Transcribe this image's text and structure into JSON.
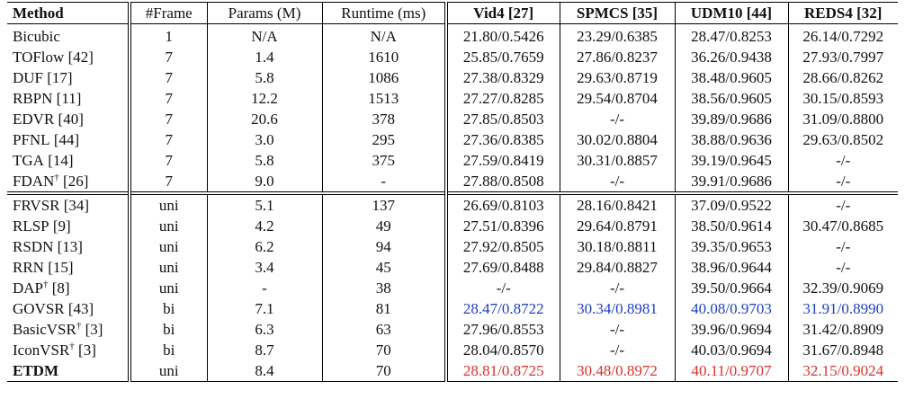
{
  "colors": {
    "best": "#d8322a",
    "second": "#1f3fbf"
  },
  "headers": [
    "Method",
    "#Frame",
    "Params (M)",
    "Runtime (ms)",
    "Vid4 [27]",
    "SPMCS [35]",
    "UDM10 [44]",
    "REDS4 [32]"
  ],
  "group1": [
    {
      "method": "Bicubic",
      "sup": "",
      "ref": "",
      "frame": "1",
      "params": "N/A",
      "runtime": "N/A",
      "vid4": "21.80/0.5426",
      "spmcs": "23.29/0.6385",
      "udm10": "28.47/0.8253",
      "reds4": "26.14/0.7292"
    },
    {
      "method": "TOFlow",
      "sup": "",
      "ref": " [42]",
      "frame": "7",
      "params": "1.4",
      "runtime": "1610",
      "vid4": "25.85/0.7659",
      "spmcs": "27.86/0.8237",
      "udm10": "36.26/0.9438",
      "reds4": "27.93/0.7997"
    },
    {
      "method": "DUF",
      "sup": "",
      "ref": " [17]",
      "frame": "7",
      "params": "5.8",
      "runtime": "1086",
      "vid4": "27.38/0.8329",
      "spmcs": "29.63/0.8719",
      "udm10": "38.48/0.9605",
      "reds4": "28.66/0.8262"
    },
    {
      "method": "RBPN",
      "sup": "",
      "ref": " [11]",
      "frame": "7",
      "params": "12.2",
      "runtime": "1513",
      "vid4": "27.27/0.8285",
      "spmcs": "29.54/0.8704",
      "udm10": "38.56/0.9605",
      "reds4": "30.15/0.8593"
    },
    {
      "method": "EDVR",
      "sup": "",
      "ref": " [40]",
      "frame": "7",
      "params": "20.6",
      "runtime": "378",
      "vid4": "27.85/0.8503",
      "spmcs": "-/-",
      "udm10": "39.89/0.9686",
      "reds4": "31.09/0.8800"
    },
    {
      "method": "PFNL",
      "sup": "",
      "ref": " [44]",
      "frame": "7",
      "params": "3.0",
      "runtime": "295",
      "vid4": "27.36/0.8385",
      "spmcs": "30.02/0.8804",
      "udm10": "38.88/0.9636",
      "reds4": "29.63/0.8502"
    },
    {
      "method": "TGA",
      "sup": "",
      "ref": " [14]",
      "frame": "7",
      "params": "5.8",
      "runtime": "375",
      "vid4": "27.59/0.8419",
      "spmcs": "30.31/0.8857",
      "udm10": "39.19/0.9645",
      "reds4": "-/-"
    },
    {
      "method": "FDAN",
      "sup": "†",
      "ref": " [26]",
      "frame": "7",
      "params": "9.0",
      "runtime": "-",
      "vid4": "27.88/0.8508",
      "spmcs": "-/-",
      "udm10": "39.91/0.9686",
      "reds4": "-/-"
    }
  ],
  "group2": [
    {
      "method": "FRVSR",
      "sup": "",
      "ref": " [34]",
      "frame": "uni",
      "params": "5.1",
      "runtime": "137",
      "vid4": "26.69/0.8103",
      "spmcs": "28.16/0.8421",
      "udm10": "37.09/0.9522",
      "reds4": "-/-"
    },
    {
      "method": "RLSP",
      "sup": "",
      "ref": " [9]",
      "frame": "uni",
      "params": "4.2",
      "runtime": "49",
      "vid4": "27.51/0.8396",
      "spmcs": "29.64/0.8791",
      "udm10": "38.50/0.9614",
      "reds4": "30.47/0.8685"
    },
    {
      "method": "RSDN",
      "sup": "",
      "ref": " [13]",
      "frame": "uni",
      "params": "6.2",
      "runtime": "94",
      "vid4": "27.92/0.8505",
      "spmcs": "30.18/0.8811",
      "udm10": "39.35/0.9653",
      "reds4": "-/-"
    },
    {
      "method": "RRN",
      "sup": "",
      "ref": " [15]",
      "frame": "uni",
      "params": "3.4",
      "runtime": "45",
      "vid4": "27.69/0.8488",
      "spmcs": "29.84/0.8827",
      "udm10": "38.96/0.9644",
      "reds4": "-/-"
    },
    {
      "method": "DAP",
      "sup": "†",
      "ref": " [8]",
      "frame": "uni",
      "params": "-",
      "runtime": "38",
      "vid4": "-/-",
      "spmcs": "-/-",
      "udm10": "39.50/0.9664",
      "reds4": "32.39/0.9069"
    },
    {
      "method": "GOVSR",
      "sup": "",
      "ref": " [43]",
      "frame": "bi",
      "params": "7.1",
      "runtime": "81",
      "vid4": "28.47/0.8722",
      "spmcs": "30.34/0.8981",
      "udm10": "40.08/0.9703",
      "reds4": "31.91/0.8990"
    },
    {
      "method": "BasicVSR",
      "sup": "†",
      "ref": " [3]",
      "frame": "bi",
      "params": "6.3",
      "runtime": "63",
      "vid4": "27.96/0.8553",
      "spmcs": "-/-",
      "udm10": "39.96/0.9694",
      "reds4": "31.42/0.8909"
    },
    {
      "method": "IconVSR",
      "sup": "†",
      "ref": " [3]",
      "frame": "bi",
      "params": "8.7",
      "runtime": "70",
      "vid4": "28.04/0.8570",
      "spmcs": "-/-",
      "udm10": "40.03/0.9694",
      "reds4": "31.67/0.8948"
    },
    {
      "method": "ETDM",
      "sup": "",
      "ref": "",
      "frame": "uni",
      "params": "8.4",
      "runtime": "70",
      "vid4": "28.81/0.8725",
      "spmcs": "30.48/0.8972",
      "udm10": "40.11/0.9707",
      "reds4": "32.15/0.9024"
    }
  ]
}
